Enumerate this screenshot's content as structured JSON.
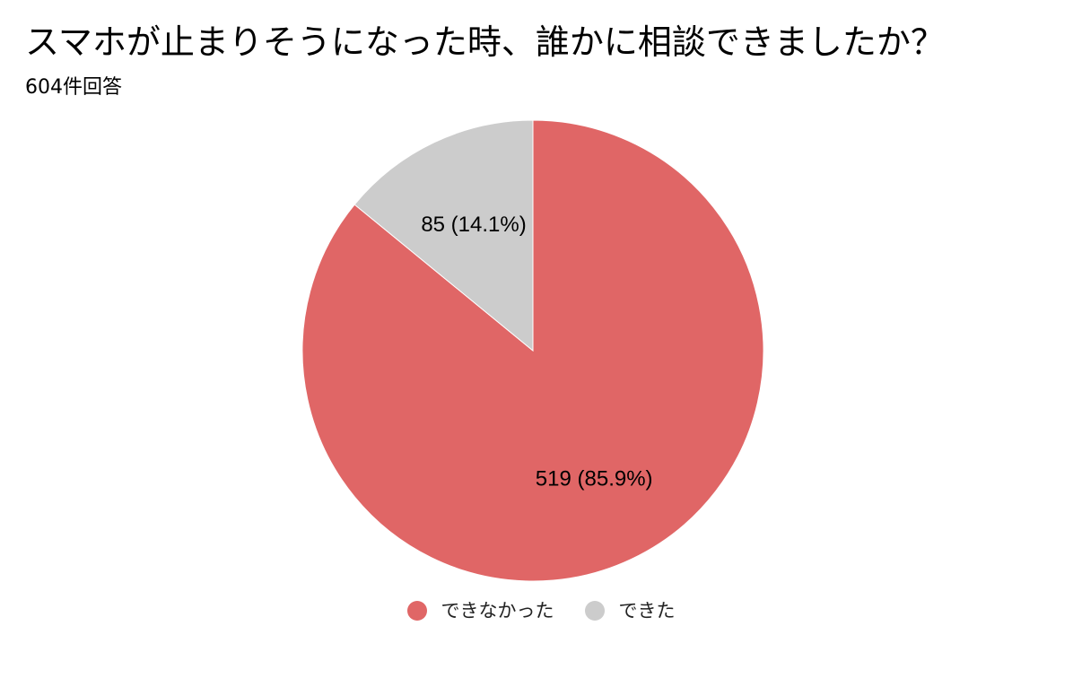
{
  "header": {
    "title": "スマホが止まりそうになった時、誰かに相談できましたか？",
    "subtitle": "604件回答"
  },
  "chart_data": {
    "type": "pie",
    "title": "スマホが止まりそうになった時、誰かに相談できましたか？",
    "subtitle": "604件回答",
    "total": 604,
    "slices": [
      {
        "label": "できなかった",
        "value": 519,
        "percent": 85.9,
        "display": "519 (85.9%)",
        "color": "#e06666"
      },
      {
        "label": "できた",
        "value": 85,
        "percent": 14.1,
        "display": "85 (14.1%)",
        "color": "#cccccc"
      }
    ],
    "legend_position": "bottom"
  },
  "legend": {
    "items": [
      {
        "label": "できなかった",
        "color": "#e06666"
      },
      {
        "label": "できた",
        "color": "#cccccc"
      }
    ]
  }
}
